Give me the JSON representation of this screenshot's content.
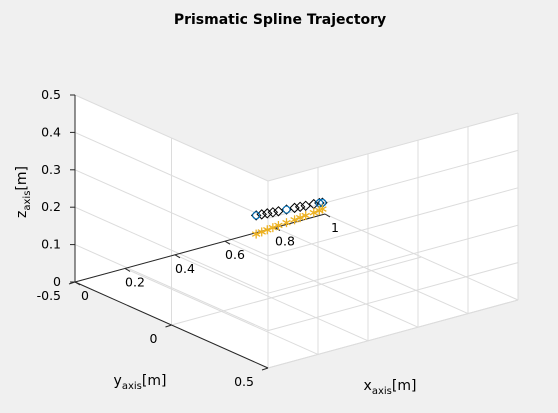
{
  "chart_data": {
    "type": "scatter",
    "title": "Prismatic Spline Trajectory",
    "xlabel": {
      "main": "x",
      "sub": "axis",
      "unit": "[m]"
    },
    "ylabel": {
      "main": "y",
      "sub": "axis",
      "unit": "[m]"
    },
    "zlabel": {
      "main": "z",
      "sub": "axis",
      "unit": "[m]"
    },
    "xlim": [
      0,
      1
    ],
    "ylim": [
      -0.5,
      0.5
    ],
    "zlim": [
      0,
      0.5
    ],
    "xticks": [
      "0",
      "0.2",
      "0.4",
      "0.6",
      "0.8",
      "1"
    ],
    "yticks": [
      "-0.5",
      "0",
      "0.5"
    ],
    "zticks": [
      "0",
      "0.1",
      "0.2",
      "0.3",
      "0.4",
      "0.5"
    ],
    "grid": true,
    "view": "3d",
    "series": [
      {
        "marker": "diamond",
        "color": "#000000",
        "x": [
          0.3,
          0.33,
          0.36,
          0.39,
          0.42,
          0.46,
          0.5,
          0.53,
          0.56,
          0.6,
          0.63,
          0.65
        ],
        "y": [
          0.05,
          0.04,
          0.03,
          0.02,
          0.01,
          0.0,
          -0.01,
          -0.02,
          -0.03,
          -0.04,
          -0.05,
          -0.06
        ],
        "z": [
          0.25,
          0.245,
          0.24,
          0.235,
          0.23,
          0.225,
          0.22,
          0.215,
          0.21,
          0.205,
          0.2,
          0.195
        ]
      },
      {
        "marker": "circle",
        "color": "#0072BD",
        "x": [
          0.3,
          0.46,
          0.63,
          0.65
        ],
        "y": [
          0.05,
          0.0,
          -0.05,
          -0.06
        ],
        "z": [
          0.25,
          0.225,
          0.2,
          0.195
        ]
      },
      {
        "marker": "asterisk",
        "color": "#EDB120",
        "x": [
          0.3,
          0.33,
          0.36,
          0.39,
          0.42,
          0.46,
          0.5,
          0.53,
          0.56,
          0.6,
          0.63,
          0.65
        ],
        "y": [
          0.05,
          0.04,
          0.03,
          0.02,
          0.01,
          0.0,
          -0.01,
          -0.02,
          -0.03,
          -0.04,
          -0.05,
          -0.06
        ],
        "z": [
          0.2,
          0.198,
          0.196,
          0.194,
          0.192,
          0.19,
          0.188,
          0.186,
          0.184,
          0.182,
          0.18,
          0.178
        ]
      }
    ]
  }
}
